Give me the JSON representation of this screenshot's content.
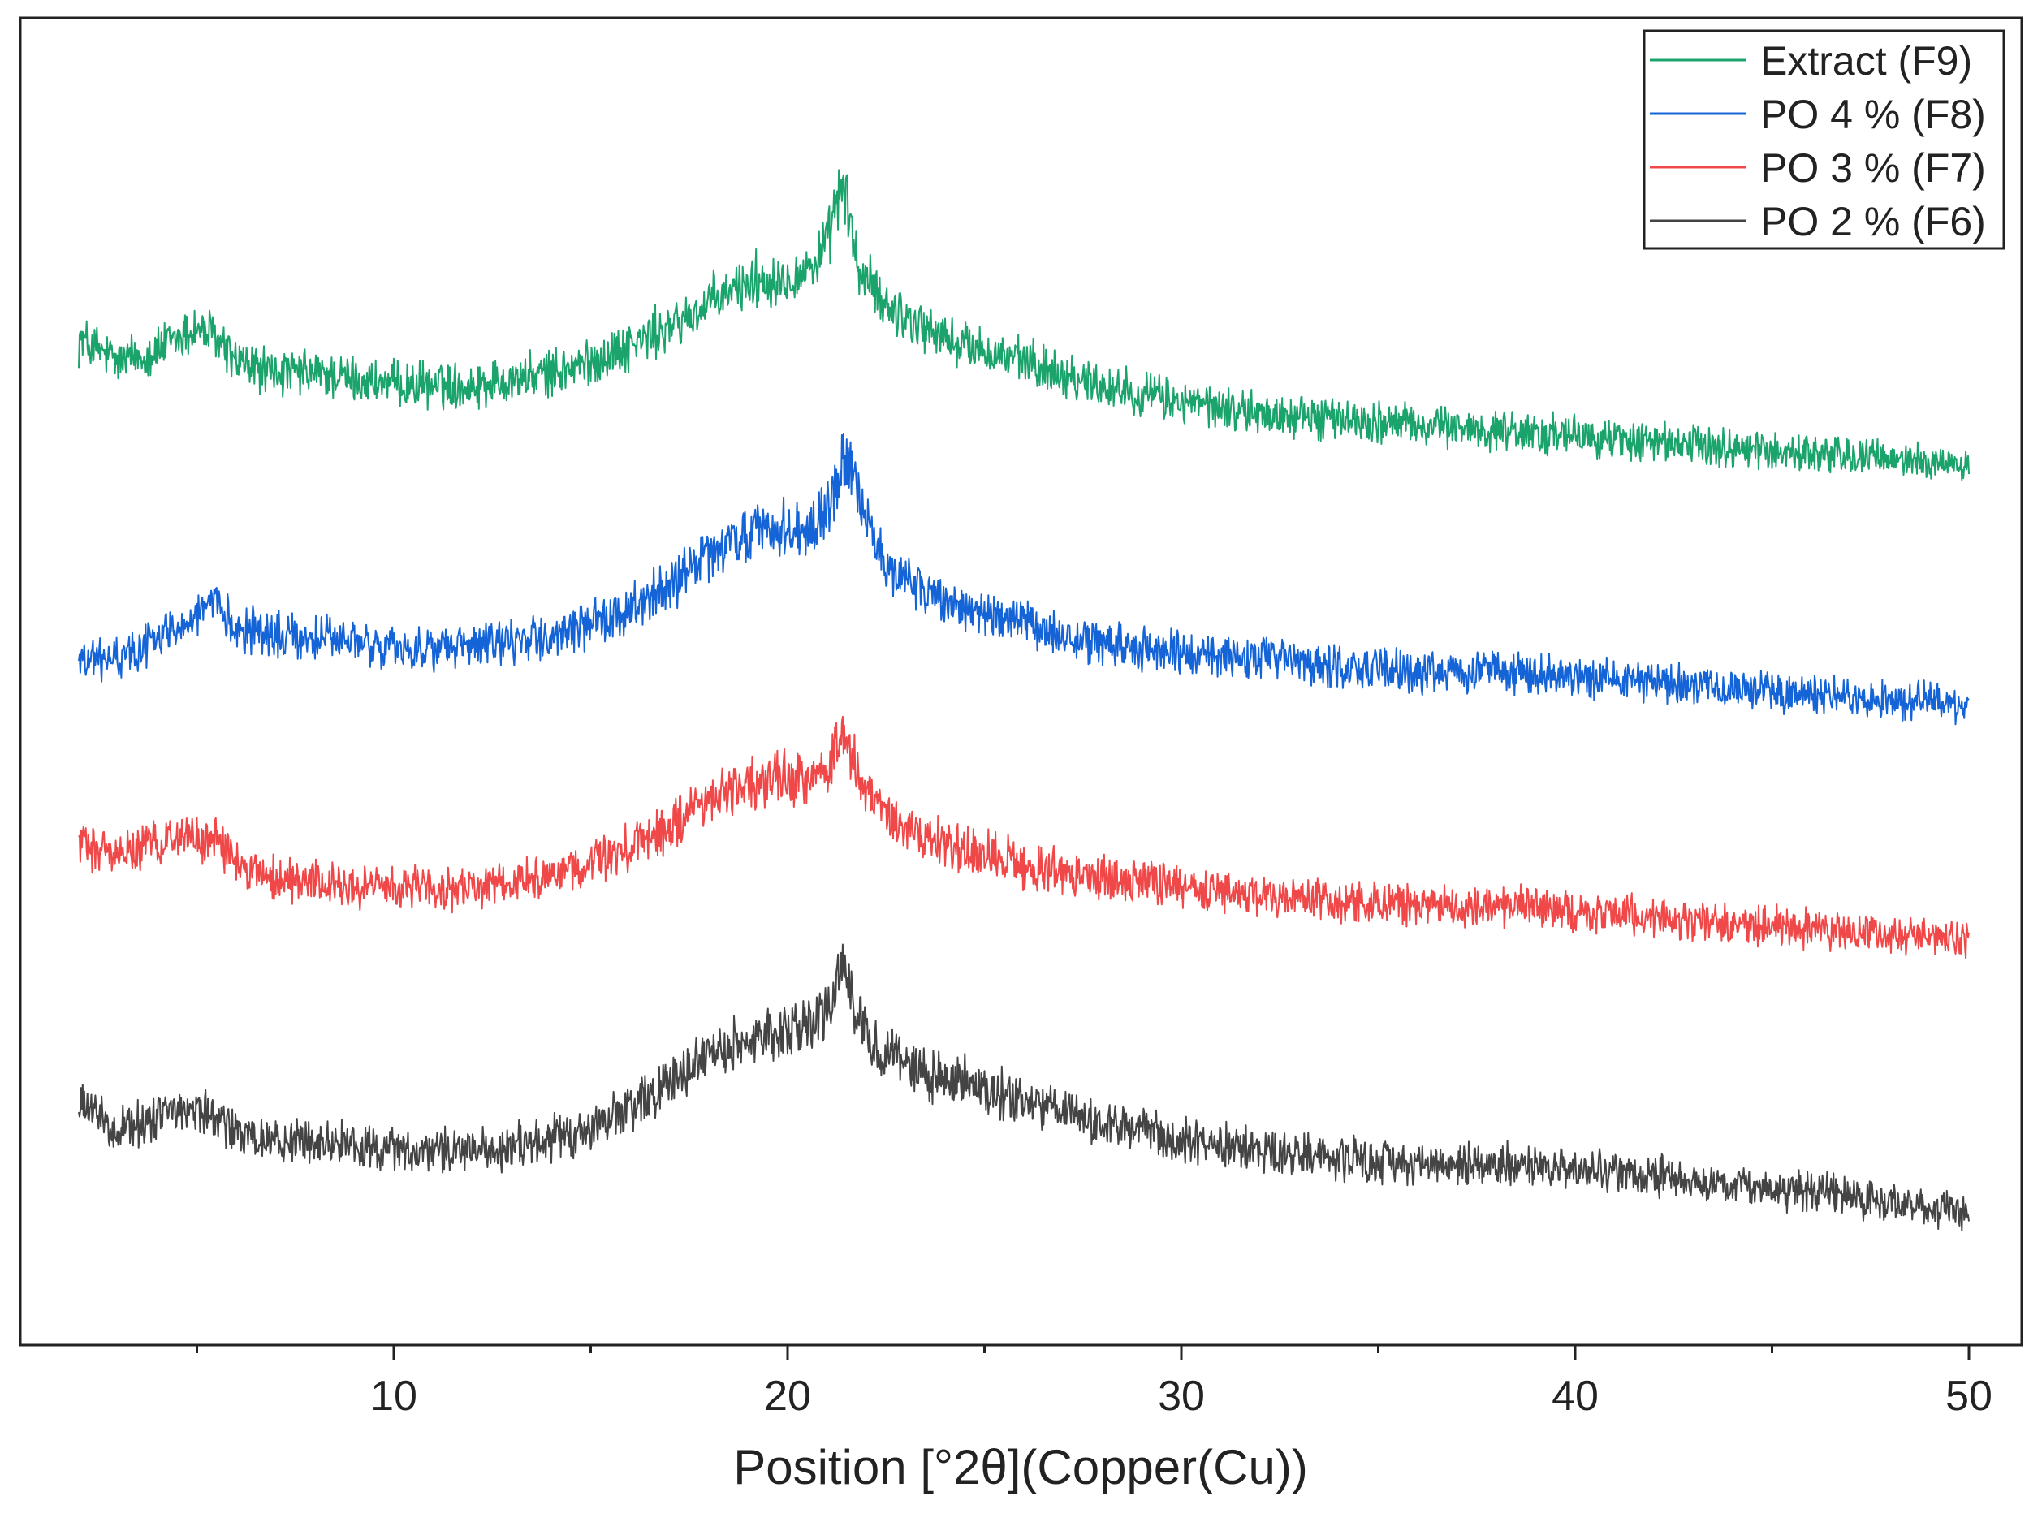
{
  "chart_data": {
    "type": "line",
    "title": "",
    "xlabel": "Position [°2θ](Copper(Cu))",
    "ylabel": "",
    "xlim": [
      -5,
      52
    ],
    "ylim": [
      0,
      100
    ],
    "x_ticks": [
      10,
      20,
      30,
      40,
      50
    ],
    "x_tick_labels": [
      "10",
      "20",
      "30",
      "40",
      "50"
    ],
    "y_axis_shown": false,
    "grid": false,
    "legend_position": "top-right",
    "series": [
      {
        "name": "Extract (F9)",
        "color": "#1aa36b",
        "x": [
          2,
          3,
          4,
          5,
          5.5,
          6,
          7,
          8,
          9,
          10,
          11,
          12,
          13,
          14,
          15,
          16,
          17,
          18,
          19,
          20,
          20.5,
          21,
          21.4,
          21.8,
          22.5,
          23,
          24,
          25,
          26,
          27,
          28,
          30,
          32,
          34,
          36,
          38,
          40,
          42,
          44,
          46,
          48,
          50
        ],
        "y": [
          81,
          79,
          80,
          82,
          81,
          79,
          78,
          78,
          77.5,
          77,
          77,
          77,
          77.5,
          78,
          79,
          80.5,
          82,
          84,
          86,
          86.5,
          87,
          89,
          95,
          87,
          84,
          83,
          81,
          80,
          79,
          78,
          77,
          75.5,
          74.5,
          74,
          73.5,
          73,
          72.5,
          72,
          71.5,
          71,
          70.5,
          70
        ]
      },
      {
        "name": "PO 4 % (F8)",
        "color": "#1464d7",
        "x": [
          2,
          3,
          4,
          5,
          5.5,
          6,
          7,
          8,
          9,
          10,
          11,
          12,
          13,
          14,
          15,
          16,
          17,
          18,
          19,
          20,
          20.5,
          21,
          21.5,
          21.8,
          22.5,
          23,
          24,
          25,
          26,
          27,
          28,
          30,
          32,
          34,
          36,
          38,
          40,
          42,
          44,
          46,
          48,
          50
        ],
        "y": [
          53,
          53,
          55,
          57,
          57.5,
          56,
          55,
          55,
          54.5,
          54,
          54,
          54,
          54.5,
          55,
          56,
          57.5,
          59.5,
          62,
          64,
          64.5,
          64,
          66,
          71,
          67,
          61,
          60,
          58,
          57,
          56,
          55,
          54.5,
          53.5,
          53,
          52.5,
          52,
          52,
          51.5,
          51,
          50.5,
          50,
          49.5,
          49
        ]
      },
      {
        "name": "PO 3 % (F7)",
        "color": "#f04848",
        "x": [
          2,
          3,
          4,
          4.5,
          5,
          5.5,
          6,
          7,
          8,
          9,
          10,
          11,
          12,
          13,
          14,
          15,
          16,
          17,
          18,
          19,
          20,
          20.5,
          21,
          21.4,
          21.8,
          22.5,
          23,
          24,
          25,
          26,
          27,
          28,
          30,
          32,
          34,
          36,
          38,
          40,
          42,
          44,
          46,
          48,
          50
        ],
        "y": [
          37,
          36,
          37,
          38,
          37,
          37.5,
          35,
          34,
          33.5,
          33,
          33,
          33,
          33,
          33.5,
          34,
          35,
          36.5,
          38.5,
          41,
          42,
          42.5,
          42.5,
          43,
          47,
          43,
          39,
          38,
          37,
          36,
          35,
          34.5,
          34,
          33,
          32.5,
          32,
          31.5,
          31.5,
          31,
          30.5,
          30,
          29.5,
          29,
          28.5
        ]
      },
      {
        "name": "PO 2 % (F6)",
        "color": "#444444",
        "x": [
          2,
          3,
          4,
          5,
          5.5,
          6,
          7,
          8,
          9,
          10,
          11,
          12,
          13,
          14,
          15,
          16,
          17,
          18,
          19,
          20,
          20.5,
          21,
          21.4,
          21.8,
          22.5,
          23,
          24,
          25,
          26,
          27,
          28,
          30,
          32,
          34,
          36,
          38,
          40,
          42,
          44,
          46,
          48,
          50
        ],
        "y": [
          14,
          12,
          13,
          14,
          13,
          11.5,
          11,
          11,
          10.5,
          10,
          10,
          10,
          10.5,
          11,
          12,
          14,
          16,
          18.5,
          20,
          20.5,
          21,
          22,
          26.5,
          21,
          18.5,
          17.5,
          16.5,
          15.5,
          14.5,
          13.5,
          12.5,
          11,
          10,
          9.5,
          9,
          9,
          8.5,
          8,
          7,
          6.5,
          5.5,
          4.5
        ]
      }
    ]
  }
}
